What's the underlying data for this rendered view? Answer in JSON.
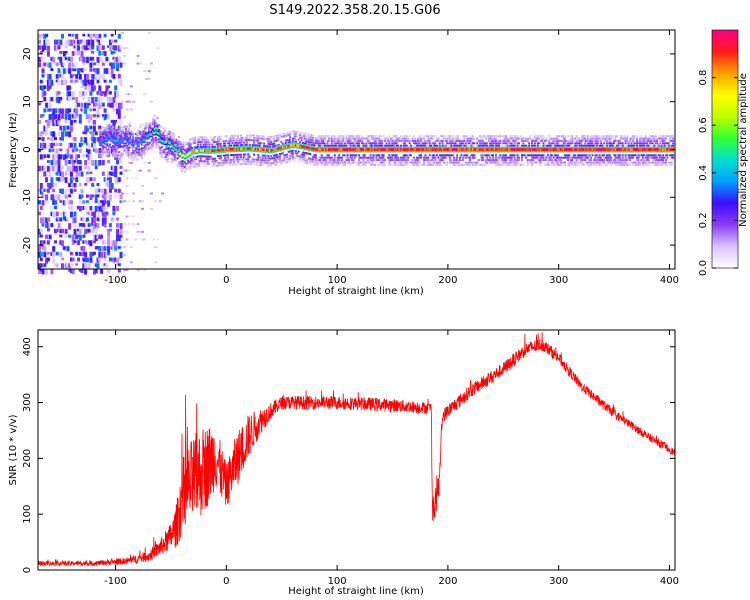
{
  "title": "S149.2022.358.20.15.G06",
  "chart_data": [
    {
      "type": "heatmap",
      "xlabel": "Height of straight line (km)",
      "ylabel": "Frequency (Hz)",
      "xlim": [
        -170,
        405
      ],
      "ylim": [
        -25,
        25
      ],
      "xticks": [
        -100,
        0,
        100,
        200,
        300,
        400
      ],
      "yticks": [
        20,
        10,
        0,
        -10,
        -20
      ],
      "colorbar": {
        "label": "Normalized spectral amplitude",
        "range": [
          0.0,
          1.0
        ],
        "ticks": [
          0.0,
          0.2,
          0.4,
          0.6,
          0.8
        ],
        "colors": [
          "#ffffff",
          "#d9c3ff",
          "#8a3cf0",
          "#3c0cff",
          "#00a0ff",
          "#00e0d0",
          "#33ff33",
          "#c0ff00",
          "#ffff00",
          "#ffa000",
          "#ff1a1a",
          "#ff007f"
        ]
      },
      "trace": {
        "x": [
          -115,
          -100,
          -90,
          -80,
          -72,
          -65,
          -58,
          -50,
          -44,
          -38,
          -32,
          -25,
          -15,
          0,
          20,
          40,
          60,
          80,
          120,
          200,
          300,
          400
        ],
        "freq": [
          2.0,
          2.0,
          2.2,
          1.0,
          3.0,
          4.5,
          1.5,
          1.0,
          -0.5,
          -1.5,
          -0.5,
          -0.2,
          -0.3,
          0.0,
          0.2,
          -0.2,
          1.0,
          0.0,
          0.0,
          0.0,
          0.0,
          0.0
        ],
        "amplitude": [
          0.35,
          0.4,
          0.35,
          0.4,
          0.45,
          0.5,
          0.5,
          0.55,
          0.6,
          0.7,
          0.8,
          0.85,
          0.88,
          0.9,
          0.92,
          0.92,
          0.9,
          0.95,
          0.95,
          0.95,
          0.95,
          0.95
        ]
      },
      "noise_region_x": [
        -170,
        -95
      ]
    },
    {
      "type": "line",
      "xlabel": "Height of straight line (km)",
      "ylabel": "SNR (10 * v/v)",
      "xlim": [
        -170,
        405
      ],
      "ylim": [
        0,
        430
      ],
      "xticks": [
        -100,
        0,
        100,
        200,
        300,
        400
      ],
      "yticks": [
        0,
        100,
        200,
        300,
        400
      ],
      "color": "#ff0000",
      "series": [
        {
          "x": [
            -170,
            -120,
            -90,
            -70,
            -60,
            -50,
            -45,
            -40,
            -30,
            -20,
            -10,
            0,
            10,
            20,
            30,
            40,
            50,
            70,
            100,
            150,
            185,
            186,
            188,
            190,
            192,
            195,
            200,
            220,
            250,
            270,
            285,
            300,
            320,
            350,
            380,
            405
          ],
          "y": [
            12,
            12,
            16,
            25,
            40,
            60,
            80,
            130,
            160,
            180,
            205,
            150,
            200,
            240,
            265,
            285,
            300,
            300,
            300,
            295,
            290,
            120,
            110,
            140,
            150,
            275,
            285,
            320,
            360,
            395,
            405,
            380,
            330,
            280,
            240,
            210
          ],
          "noise_amp": [
            4,
            4,
            6,
            10,
            15,
            25,
            40,
            70,
            80,
            80,
            60,
            40,
            50,
            40,
            25,
            15,
            12,
            12,
            12,
            12,
            10,
            30,
            30,
            30,
            20,
            12,
            12,
            12,
            12,
            12,
            12,
            10,
            9,
            8,
            7,
            7
          ]
        }
      ]
    }
  ]
}
